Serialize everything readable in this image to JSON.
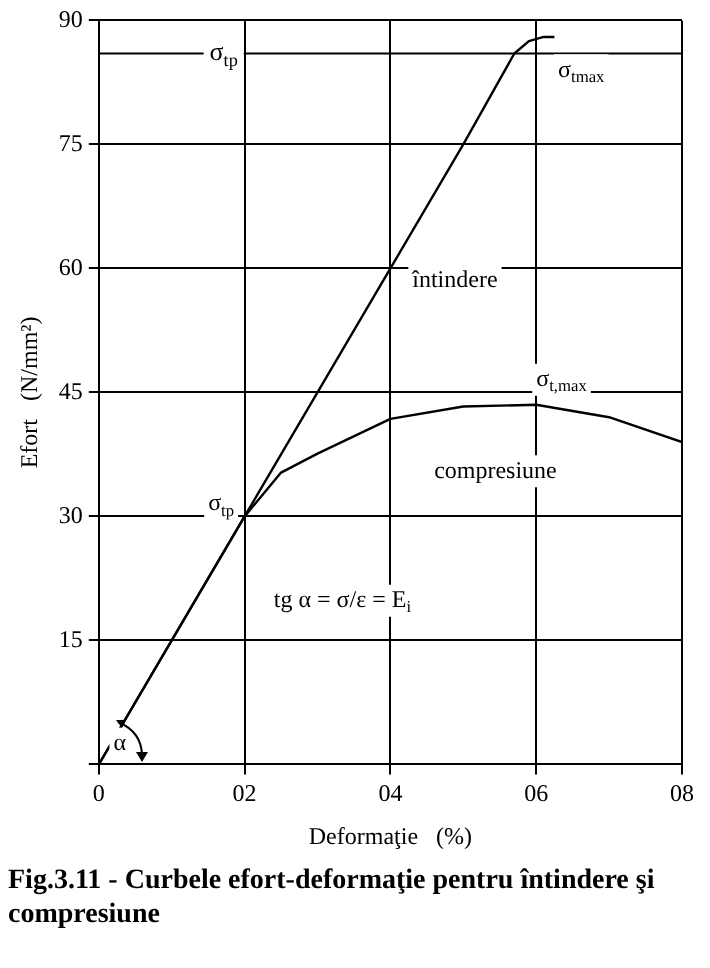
{
  "chart_data": {
    "type": "line",
    "title": "Fig.3.11 - Curbele efort-deformaţie pentru întindere şi compresiune",
    "xlabel": "Deformaţie   (%)",
    "ylabel": "Efort   (N/mm²)",
    "series": [
      {
        "color": "#000000",
        "x": [
          0,
          2,
          4,
          5,
          5.7,
          5.9,
          6.1,
          6.25
        ],
        "values": [
          0,
          30,
          60,
          75,
          86,
          87.5,
          88,
          88
        ]
      },
      {
        "color": "#000000",
        "x": [
          0,
          2,
          2.5,
          3,
          4,
          5,
          6,
          7,
          8
        ],
        "values": [
          0,
          30,
          35.3,
          37.6,
          41.8,
          43.3,
          43.5,
          42,
          39
        ]
      }
    ],
    "xlim": [
      0,
      8
    ],
    "xticks": [
      0,
      {
        "value": 2,
        "label": "02"
      },
      {
        "value": 4,
        "label": "04"
      },
      {
        "value": 6,
        "label": "06"
      },
      {
        "value": 8,
        "label": "08"
      }
    ],
    "ylim": [
      0,
      90
    ],
    "yticks": [
      {
        "value": 0,
        "label": null
      },
      15,
      30,
      45,
      60,
      75,
      90
    ],
    "ref_lines": [
      {
        "axis": "y",
        "value": 86,
        "label": "σ$_{tp}$"
      }
    ],
    "annotations": [
      "σ$_{tmax}$",
      "întindere",
      "σ$_{t,max}$",
      "compresiune",
      "σ$_{tp}$",
      "α",
      "tg α = σ/ε = E$_{i}$"
    ],
    "grid": true,
    "legend": false,
    "marker": "none",
    "line_style": "solid"
  }
}
